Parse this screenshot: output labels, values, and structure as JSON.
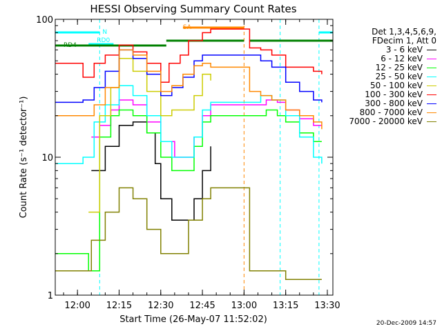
{
  "chart_data": {
    "type": "line",
    "title": "HESSI Observing Summary Count Rates",
    "xlabel": "Start Time (26-May-07 11:52:02)",
    "ylabel": "Count Rate (s⁻¹ detector⁻¹)",
    "yscale": "log",
    "ylim": [
      1,
      100
    ],
    "xlim": [
      "11:52",
      "13:32"
    ],
    "x_ticks": [
      "12:00",
      "12:15",
      "12:30",
      "12:45",
      "13:00",
      "13:15",
      "13:30"
    ],
    "y_ticks": [
      "1",
      "10",
      "100"
    ],
    "grid": false,
    "legend_position": "right",
    "legend_header": [
      "Det 1,3,4,5,6,9,",
      "FDecim 1, Att 0"
    ],
    "series": [
      {
        "name": "3 - 6 keV",
        "color": "#000000",
        "x": [
          "11:52",
          "12:00",
          "12:05",
          "12:10",
          "12:15",
          "12:20",
          "12:25",
          "12:28",
          "12:30",
          "12:34",
          "12:38",
          "12:42",
          "12:45",
          "12:48"
        ],
        "values": [
          null,
          null,
          8,
          12,
          17,
          18,
          15,
          9,
          5,
          3.5,
          3.5,
          5,
          8,
          12
        ]
      },
      {
        "name": "6 - 12 keV",
        "color": "#ff00ff",
        "x": [
          "11:52",
          "12:00",
          "12:05",
          "12:08",
          "12:12",
          "12:15",
          "12:20",
          "12:25",
          "12:30",
          "12:35",
          "12:38",
          "12:42",
          "12:45",
          "12:48",
          "13:02",
          "13:08",
          "13:12",
          "13:15",
          "13:20",
          "13:25",
          "13:28"
        ],
        "values": [
          null,
          null,
          14,
          17,
          22,
          26,
          24,
          18,
          13,
          10,
          10,
          14,
          20,
          24,
          24,
          26,
          25,
          22,
          19,
          17,
          17
        ]
      },
      {
        "name": "12 - 25 keV",
        "color": "#00ff00",
        "x": [
          "11:52",
          "12:00",
          "12:04",
          "12:08",
          "12:12",
          "12:15",
          "12:20",
          "12:25",
          "12:30",
          "12:34",
          "12:38",
          "12:42",
          "12:45",
          "12:48",
          "13:02",
          "13:08",
          "13:12",
          "13:15",
          "13:20",
          "13:25",
          "13:28"
        ],
        "values": [
          2,
          2,
          1.5,
          14,
          20,
          22,
          20,
          15,
          10,
          8,
          8,
          12,
          18,
          20,
          20,
          22,
          20,
          18,
          15,
          13,
          13
        ]
      },
      {
        "name": "25 - 50 keV",
        "color": "#00ffff",
        "x": [
          "11:52",
          "12:00",
          "12:02",
          "12:06",
          "12:10",
          "12:15",
          "12:20",
          "12:25",
          "12:30",
          "12:34",
          "12:38",
          "12:42",
          "12:45",
          "12:48",
          "13:02",
          "13:06",
          "13:10",
          "13:15",
          "13:20",
          "13:25",
          "13:28"
        ],
        "values": [
          9,
          9,
          10,
          18,
          24,
          33,
          28,
          20,
          13,
          10,
          10,
          14,
          22,
          25,
          25,
          28,
          26,
          20,
          14,
          10,
          9
        ]
      },
      {
        "name": "50 - 100 keV",
        "color": "#cccc00",
        "x": [
          "11:52",
          "12:00",
          "12:04",
          "12:08",
          "12:12",
          "12:15",
          "12:20",
          "12:25",
          "12:30",
          "12:34",
          "12:38",
          "12:42",
          "12:45",
          "12:48"
        ],
        "values": [
          null,
          null,
          4,
          20,
          32,
          52,
          42,
          30,
          20,
          22,
          22,
          28,
          40,
          36
        ]
      },
      {
        "name": "100 - 300 keV",
        "color": "#ff0000",
        "x": [
          "11:52",
          "12:00",
          "12:02",
          "12:06",
          "12:10",
          "12:15",
          "12:20",
          "12:25",
          "12:30",
          "12:33",
          "12:37",
          "12:40",
          "12:45",
          "12:48",
          "13:02",
          "13:06",
          "13:10",
          "13:15",
          "13:20",
          "13:25",
          "13:28"
        ],
        "values": [
          48,
          48,
          38,
          48,
          55,
          65,
          58,
          48,
          35,
          48,
          55,
          70,
          80,
          85,
          62,
          60,
          55,
          45,
          45,
          42,
          40
        ]
      },
      {
        "name": "300 - 800 keV",
        "color": "#0000ff",
        "x": [
          "11:52",
          "12:00",
          "12:02",
          "12:06",
          "12:10",
          "12:15",
          "12:20",
          "12:25",
          "12:30",
          "12:34",
          "12:38",
          "12:42",
          "12:45",
          "12:48",
          "13:02",
          "13:06",
          "13:10",
          "13:15",
          "13:20",
          "13:25",
          "13:28"
        ],
        "values": [
          25,
          25,
          26,
          32,
          42,
          60,
          52,
          40,
          28,
          32,
          38,
          50,
          55,
          55,
          55,
          50,
          45,
          35,
          30,
          26,
          25
        ]
      },
      {
        "name": "800 - 7000 keV",
        "color": "#ff8800",
        "x": [
          "11:52",
          "12:00",
          "12:02",
          "12:06",
          "12:10",
          "12:15",
          "12:20",
          "12:25",
          "12:30",
          "12:34",
          "12:38",
          "12:42",
          "12:45",
          "12:48",
          "13:02",
          "13:06",
          "13:10",
          "13:15",
          "13:20",
          "13:25",
          "13:28"
        ],
        "values": [
          20,
          20,
          20,
          24,
          32,
          60,
          55,
          42,
          30,
          33,
          40,
          46,
          48,
          45,
          30,
          28,
          26,
          22,
          20,
          18,
          16
        ]
      },
      {
        "name": "7000 - 20000 keV",
        "color": "#808000",
        "x": [
          "11:52",
          "12:00",
          "12:05",
          "12:10",
          "12:15",
          "12:20",
          "12:25",
          "12:30",
          "12:35",
          "12:40",
          "12:45",
          "12:48",
          "13:02",
          "13:10",
          "13:15",
          "13:20",
          "13:25",
          "13:28"
        ],
        "values": [
          1.5,
          1.5,
          2.5,
          4,
          6,
          5,
          3,
          2,
          2,
          3.5,
          5,
          6,
          1.5,
          1.5,
          1.3,
          1.3,
          1.3,
          1.3
        ]
      }
    ],
    "annotations": {
      "labels": [
        "N",
        "RD0",
        "RD4",
        "SA"
      ],
      "vertical_markers_cyan": [
        "12:08",
        "13:13",
        "13:27"
      ],
      "vertical_markers_orange": [
        "13:00"
      ]
    }
  },
  "footer": {
    "timestamp": "20-Dec-2009 14:57"
  }
}
